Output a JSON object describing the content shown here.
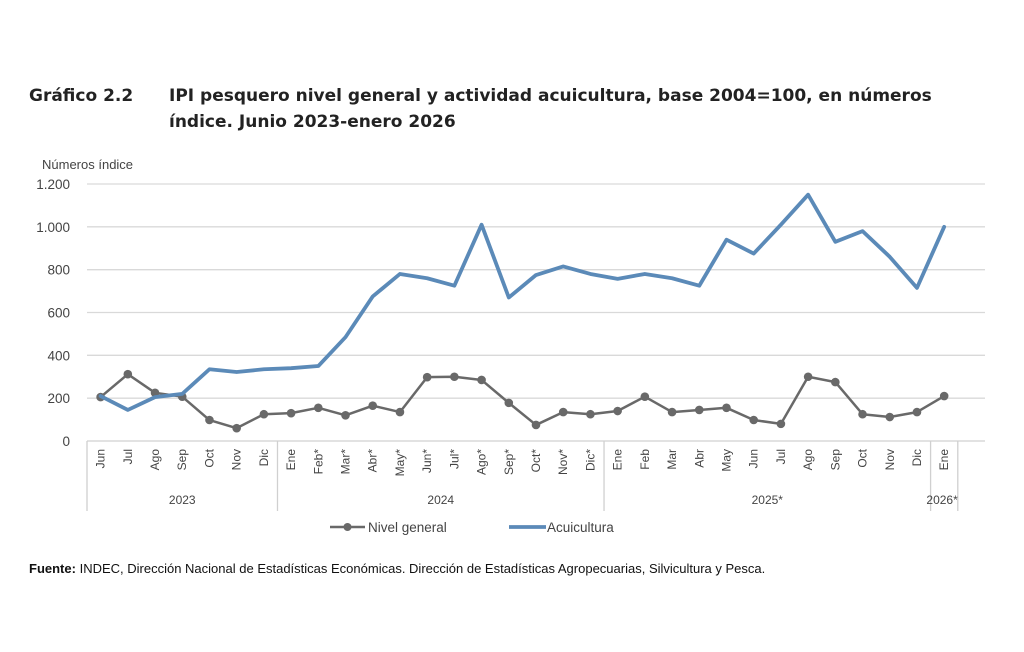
{
  "header": {
    "figure_number": "Gráfico 2.2",
    "title": "IPI pesquero nivel general y actividad acuicultura, base 2004=100, en números índice. Junio 2023-enero 2026"
  },
  "footer": {
    "source_label": "Fuente:",
    "source_text": "INDEC, Dirección Nacional de Estadísticas Económicas. Dirección de Estadísticas Agropecuarias, Silvicultura y Pesca."
  },
  "chart_data": {
    "type": "line",
    "title": "IPI pesquero nivel general y actividad acuicultura, base 2004=100, en números índice. Junio 2023-enero 2026",
    "ylabel": "Números índice",
    "xlabel": "",
    "ylim": [
      0,
      1200
    ],
    "yticks": [
      0,
      200,
      400,
      600,
      800,
      1000,
      1200
    ],
    "ytick_labels": [
      "0",
      "200",
      "400",
      "600",
      "800",
      "1.000",
      "1.200"
    ],
    "grid": true,
    "legend_position": "bottom",
    "categories": [
      "Jun",
      "Jul",
      "Ago",
      "Sep",
      "Oct",
      "Nov",
      "Dic",
      "Ene",
      "Feb*",
      "Mar*",
      "Abr*",
      "May*",
      "Jun*",
      "Jul*",
      "Ago*",
      "Sep*",
      "Oct*",
      "Nov*",
      "Dic*",
      "Ene",
      "Feb",
      "Mar",
      "Abr",
      "May",
      "Jun",
      "Jul",
      "Ago",
      "Sep",
      "Oct",
      "Nov",
      "Dic",
      "Ene"
    ],
    "year_groups": [
      {
        "label": "2023",
        "count": 7
      },
      {
        "label": "2024",
        "count": 12
      },
      {
        "label": "2025*",
        "count": 12
      },
      {
        "label": "2026*",
        "count": 1
      }
    ],
    "series": [
      {
        "name": "Nivel general",
        "color": "#696969",
        "markers": true,
        "values": [
          205,
          312,
          225,
          207,
          98,
          60,
          125,
          130,
          155,
          120,
          165,
          135,
          298,
          300,
          285,
          178,
          75,
          135,
          125,
          140,
          207,
          135,
          145,
          155,
          98,
          80,
          300,
          275,
          125,
          112,
          135,
          210
        ]
      },
      {
        "name": "Acuicultura",
        "color": "#5b8ab8",
        "markers": false,
        "values": [
          210,
          145,
          205,
          220,
          335,
          322,
          335,
          340,
          350,
          485,
          675,
          780,
          760,
          725,
          1010,
          670,
          775,
          815,
          780,
          757,
          780,
          760,
          725,
          940,
          875,
          1010,
          1150,
          930,
          980,
          860,
          715,
          1000
        ]
      }
    ]
  }
}
